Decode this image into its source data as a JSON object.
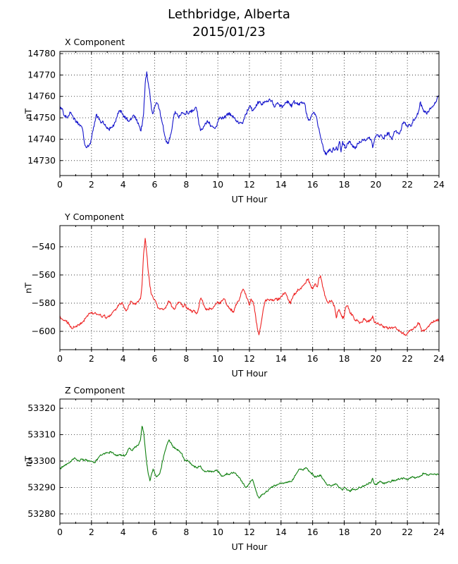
{
  "title": {
    "line1": "Lethbridge, Alberta",
    "line2": "2015/01/23"
  },
  "axis": {
    "xlabel": "UT Hour",
    "ylabel": "nT"
  },
  "x_axis": {
    "min": 0,
    "max": 24,
    "minor_step": 1,
    "major_ticks": [
      0,
      2,
      4,
      6,
      8,
      10,
      12,
      14,
      16,
      18,
      20,
      22,
      24
    ],
    "tick_labels": [
      "0",
      "2",
      "4",
      "6",
      "8",
      "10",
      "12",
      "14",
      "16",
      "18",
      "20",
      "22",
      "24"
    ]
  },
  "chart_data": [
    {
      "type": "line",
      "name": "X Component",
      "color": "#1515cc",
      "ylim": [
        14723,
        14781
      ],
      "yticks": [
        14730,
        14740,
        14750,
        14760,
        14770,
        14780
      ],
      "ytick_labels": [
        "14730",
        "14740",
        "14750",
        "14760",
        "14770",
        "14780"
      ],
      "x_start": 0,
      "x_step": 0.1,
      "jitter": 0.9,
      "values": [
        14755.5,
        14754,
        14753,
        14751,
        14750.5,
        14750.5,
        14751.5,
        14752.5,
        14751,
        14749.5,
        14748,
        14747.5,
        14747,
        14746.5,
        14745.5,
        14741,
        14737,
        14736,
        14736.5,
        14738,
        14740,
        14744,
        14748,
        14751.5,
        14750.5,
        14749.5,
        14747.5,
        14748.5,
        14747,
        14746,
        14745.5,
        14744.5,
        14745,
        14745.5,
        14746,
        14748,
        14750,
        14752,
        14753.5,
        14753,
        14751.5,
        14750,
        14749.5,
        14749,
        14748.5,
        14749,
        14750.5,
        14751,
        14749.5,
        14748,
        14746.5,
        14744,
        14746,
        14752,
        14766,
        14771.5,
        14766,
        14761,
        14754,
        14752,
        14755,
        14757,
        14756.5,
        14754,
        14750,
        14747,
        14743,
        14740,
        14738,
        14739,
        14742,
        14745,
        14750,
        14753,
        14752,
        14750.5,
        14751,
        14752.5,
        14752,
        14751.5,
        14752.5,
        14752,
        14753,
        14753.5,
        14753,
        14753.5,
        14755,
        14753,
        14747,
        14744,
        14744.5,
        14746,
        14747.5,
        14748,
        14748,
        14747,
        14746,
        14745.5,
        14745,
        14746,
        14748,
        14749.5,
        14750,
        14750.5,
        14750,
        14751,
        14752,
        14751.5,
        14752,
        14751,
        14750,
        14749.5,
        14748,
        14747.5,
        14748,
        14747.5,
        14748,
        14750,
        14752,
        14753.5,
        14755,
        14754.5,
        14753.5,
        14754,
        14755,
        14756.5,
        14757.5,
        14757,
        14756.5,
        14757,
        14757.5,
        14758,
        14757.5,
        14758.5,
        14758,
        14756,
        14755,
        14756.5,
        14757,
        14756,
        14755.5,
        14755,
        14756,
        14757,
        14758,
        14757,
        14755.5,
        14756,
        14757.5,
        14757,
        14756.5,
        14756,
        14757,
        14757.5,
        14757,
        14756.5,
        14752,
        14750,
        14749,
        14750.5,
        14752,
        14752.5,
        14751,
        14748,
        14745,
        14741,
        14738,
        14735,
        14733,
        14733.5,
        14734,
        14735.5,
        14734,
        14736,
        14735,
        14736.5,
        14735,
        14739,
        14734,
        14739,
        14737,
        14736,
        14738,
        14739,
        14738.5,
        14737.5,
        14736,
        14735.5,
        14737,
        14738,
        14738.5,
        14739,
        14739.5,
        14740,
        14739.5,
        14740.5,
        14741,
        14740,
        14736,
        14739,
        14741,
        14742,
        14741.5,
        14742,
        14741,
        14740.5,
        14741.5,
        14742,
        14743,
        14741,
        14740,
        14741.5,
        14743.5,
        14744,
        14743,
        14742.5,
        14744,
        14747.5,
        14748,
        14746.5,
        14746,
        14747,
        14746,
        14747.5,
        14749,
        14750,
        14751,
        14753,
        14757,
        14756,
        14754,
        14752.5,
        14752,
        14753,
        14754,
        14754.5,
        14755,
        14756,
        14757.5,
        14759.5,
        14760
      ]
    },
    {
      "type": "line",
      "name": "Y Component",
      "color": "#ee2222",
      "ylim": [
        -613,
        -525
      ],
      "yticks": [
        -600,
        -580,
        -560,
        -540
      ],
      "ytick_labels": [
        "−600",
        "−580",
        "−560",
        "−540"
      ],
      "x_start": 0,
      "x_step": 0.1,
      "jitter": 1.0,
      "values": [
        -589,
        -591,
        -592,
        -592.5,
        -593,
        -594,
        -595,
        -596.5,
        -598,
        -597,
        -596.5,
        -596,
        -595.5,
        -595,
        -594,
        -592.5,
        -591,
        -589.5,
        -588,
        -587.5,
        -587,
        -587.5,
        -587,
        -587.5,
        -588,
        -588.5,
        -589,
        -590,
        -588.5,
        -590.5,
        -590,
        -589.5,
        -589,
        -587,
        -585.5,
        -584.5,
        -583.5,
        -582,
        -580.5,
        -580,
        -581,
        -584,
        -585.5,
        -584,
        -581,
        -578.5,
        -579.5,
        -580.5,
        -581,
        -579,
        -578,
        -577,
        -567,
        -545,
        -534,
        -545,
        -558,
        -568,
        -574,
        -576,
        -577.5,
        -580,
        -583.5,
        -584,
        -584,
        -584.5,
        -584,
        -583.5,
        -581,
        -578.5,
        -580,
        -582.5,
        -583.5,
        -584,
        -581,
        -580,
        -579.5,
        -581,
        -582.5,
        -580.5,
        -583.5,
        -584,
        -584.5,
        -585.5,
        -586,
        -585.5,
        -586.5,
        -587,
        -583,
        -577,
        -578,
        -581,
        -583.5,
        -585,
        -584.5,
        -584,
        -584.5,
        -583.5,
        -582,
        -580.5,
        -579.5,
        -580.5,
        -579,
        -578,
        -577,
        -579.5,
        -582,
        -583.5,
        -584,
        -585.5,
        -586.5,
        -583,
        -580,
        -578.5,
        -576,
        -572.5,
        -570,
        -572,
        -575.5,
        -577.5,
        -581.5,
        -577,
        -578.5,
        -582,
        -590,
        -598,
        -602.5,
        -597,
        -590,
        -583,
        -578.5,
        -578,
        -577.5,
        -578,
        -577.5,
        -578,
        -577.5,
        -577,
        -577.5,
        -576.5,
        -575,
        -574,
        -573.5,
        -573,
        -575.5,
        -578,
        -580.5,
        -577,
        -574.5,
        -573,
        -571.5,
        -570.5,
        -570,
        -569,
        -567.5,
        -566,
        -564.5,
        -563,
        -565,
        -568,
        -570,
        -568,
        -566.5,
        -568.5,
        -562,
        -560.5,
        -566,
        -571,
        -575,
        -578.5,
        -580,
        -578.5,
        -578,
        -580.5,
        -583,
        -590.5,
        -586,
        -585,
        -588,
        -591,
        -589,
        -583,
        -582,
        -584,
        -587.5,
        -588,
        -590,
        -592,
        -591.5,
        -593,
        -594,
        -593.5,
        -592,
        -591,
        -592.5,
        -593,
        -592.5,
        -591.5,
        -589,
        -593.5,
        -594,
        -594.5,
        -595,
        -595.5,
        -596,
        -596.5,
        -597,
        -597.5,
        -598,
        -597.5,
        -597,
        -597.5,
        -597,
        -598,
        -599,
        -600,
        -600.5,
        -601,
        -602.5,
        -603,
        -601,
        -599.5,
        -599,
        -598.5,
        -598,
        -597.5,
        -596,
        -594,
        -596,
        -600,
        -599.5,
        -599,
        -598.5,
        -597,
        -595.5,
        -594,
        -593.5,
        -593,
        -592.5,
        -592,
        -592.5
      ]
    },
    {
      "type": "line",
      "name": "Z Component",
      "color": "#108010",
      "ylim": [
        53276.5,
        53323.5
      ],
      "yticks": [
        53280,
        53290,
        53300,
        53310,
        53320
      ],
      "ytick_labels": [
        "53280",
        "53290",
        "53300",
        "53310",
        "53320"
      ],
      "x_start": 0,
      "x_step": 0.1,
      "jitter": 0.35,
      "values": [
        53297,
        53297.5,
        53298,
        53298.2,
        53298.5,
        53299,
        53299.3,
        53299.8,
        53300.5,
        53301,
        53300.8,
        53300.2,
        53300,
        53300.5,
        53300.8,
        53300.3,
        53300.5,
        53300.2,
        53300,
        53299.8,
        53300,
        53299.7,
        53299.5,
        53300.2,
        53301,
        53301.8,
        53302.2,
        53302.5,
        53302.8,
        53303,
        53303.2,
        53303,
        53303.5,
        53303.2,
        53302.8,
        53302.3,
        53302,
        53302.2,
        53302.5,
        53302,
        53302.2,
        53302,
        53302.5,
        53304,
        53305,
        53304.2,
        53304,
        53305,
        53305.5,
        53306,
        53306.5,
        53308,
        53313.2,
        53311,
        53305,
        53299,
        53295,
        53292.5,
        53295,
        53297,
        53295.5,
        53294,
        53294.5,
        53295,
        53297,
        53300,
        53302.5,
        53304.5,
        53306.5,
        53308,
        53307,
        53306,
        53305.2,
        53305,
        53304.5,
        53304,
        53303.5,
        53303,
        53301.5,
        53300.2,
        53300,
        53300.2,
        53299.5,
        53299,
        53298.5,
        53298,
        53297.8,
        53297.5,
        53298,
        53298.2,
        53297,
        53296.5,
        53296.2,
        53296,
        53296.2,
        53296,
        53295.8,
        53296,
        53296.2,
        53296.5,
        53296.2,
        53295.5,
        53294.5,
        53294.2,
        53294.5,
        53295,
        53295.2,
        53295,
        53295.2,
        53295.5,
        53295.8,
        53295.5,
        53294.5,
        53294,
        53293.5,
        53292.5,
        53291.5,
        53290.5,
        53290,
        53290.8,
        53291.5,
        53292.5,
        53293,
        53291,
        53289,
        53287,
        53286,
        53286.8,
        53287.2,
        53287.5,
        53288,
        53288.5,
        53289,
        53289.5,
        53290,
        53290.3,
        53290.8,
        53291,
        53291.2,
        53291.4,
        53291.5,
        53291.6,
        53291.8,
        53292,
        53291.8,
        53292,
        53292.2,
        53292.5,
        53293.5,
        53294.5,
        53295.5,
        53296.5,
        53297,
        53296.8,
        53296.5,
        53297,
        53297.5,
        53296.8,
        53296,
        53295.5,
        53295,
        53294.2,
        53294,
        53294.5,
        53294.2,
        53294.8,
        53293.5,
        53292.8,
        53292,
        53291.2,
        53291,
        53290.8,
        53290.5,
        53290.8,
        53291,
        53291.2,
        53290.5,
        53290,
        53289.5,
        53289,
        53290,
        53289.8,
        53289,
        53288.8,
        53288.5,
        53289.5,
        53289.2,
        53289,
        53289.2,
        53289.8,
        53290,
        53290.2,
        53290.5,
        53290.8,
        53291,
        53291.2,
        53291.8,
        53292,
        53293.5,
        53291.5,
        53291,
        53291.5,
        53292,
        53292.2,
        53291.8,
        53291.5,
        53291.8,
        53292,
        53292.2,
        53292,
        53292.5,
        53292.8,
        53292.5,
        53293,
        53293.2,
        53293,
        53293.5,
        53293.2,
        53293.5,
        53293.2,
        53293,
        53293.5,
        53293.8,
        53294,
        53293.8,
        53293.5,
        53293.8,
        53294,
        53294.2,
        53294.5,
        53295.5,
        53295.2,
        53295,
        53294.8,
        53295,
        53295.2,
        53295,
        53295.2,
        53295,
        53295.2,
        53295
      ]
    }
  ]
}
